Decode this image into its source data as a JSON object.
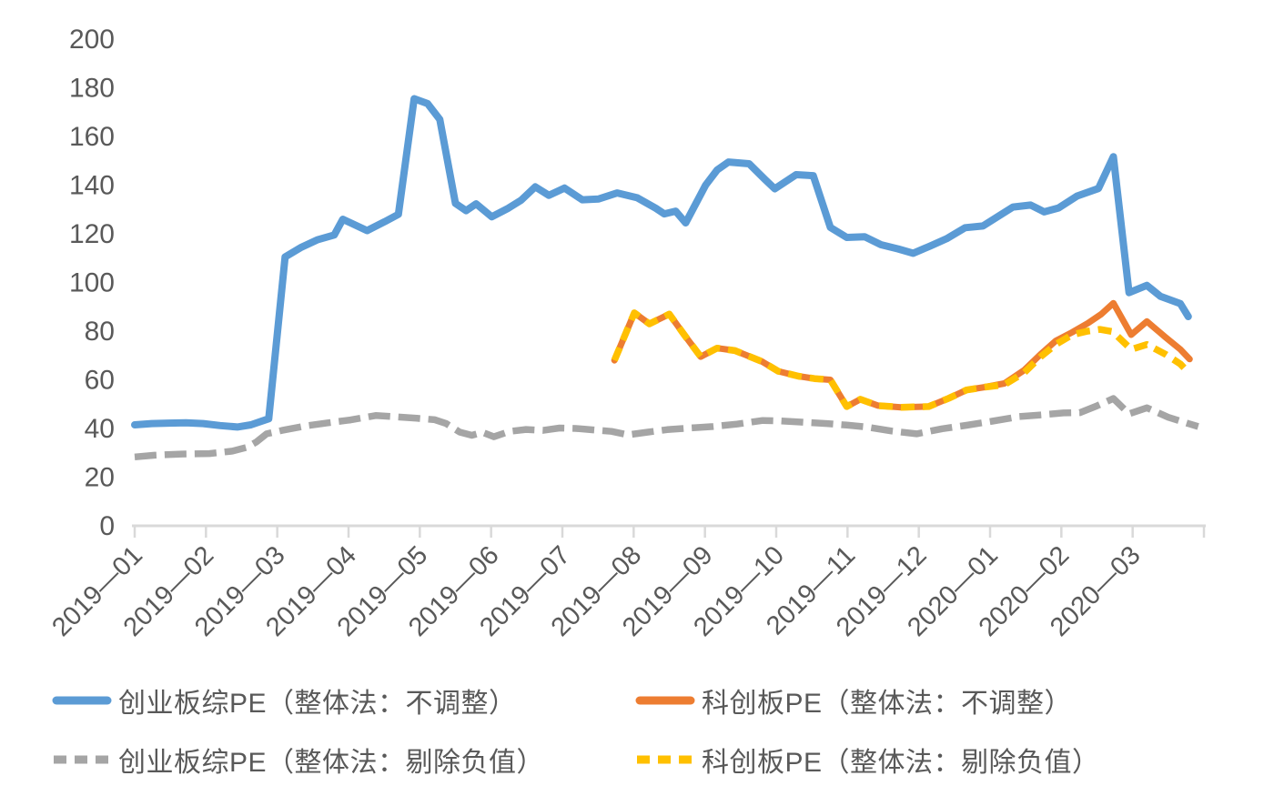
{
  "chart_data": {
    "type": "line",
    "title": "",
    "grid": false,
    "legend_position": "bottom",
    "axis_color": "#D9D9D9",
    "text_color": "#595959",
    "x_axis": {
      "unit": "months from axis left edge (2019-01 start), range 0-15",
      "range": [
        0,
        15
      ],
      "tick_labels": [
        "2019—01",
        "2019—02",
        "2019—03",
        "2019—04",
        "2019—05",
        "2019—06",
        "2019—07",
        "2019—08",
        "2019—09",
        "2019—10",
        "2019—11",
        "2019—12",
        "2020—01",
        "2020—02",
        "2020—03"
      ]
    },
    "y_axis": {
      "min": 0,
      "max": 200,
      "step": 20,
      "tick_labels": [
        "0",
        "20",
        "40",
        "60",
        "80",
        "100",
        "120",
        "140",
        "160",
        "180",
        "200"
      ]
    },
    "series": [
      {
        "id": "chinext-pe-unadjusted",
        "name": "创业板综PE（整体法：不调整）",
        "color": "#5B9BD5",
        "dashed": false,
        "points": [
          [
            0,
            41.5
          ],
          [
            0.24,
            42
          ],
          [
            0.48,
            42.2
          ],
          [
            0.72,
            42.3
          ],
          [
            0.96,
            42
          ],
          [
            1.2,
            41.2
          ],
          [
            1.44,
            40.6
          ],
          [
            1.63,
            41.5
          ],
          [
            1.88,
            44
          ],
          [
            2.11,
            110.5
          ],
          [
            2.34,
            114.5
          ],
          [
            2.56,
            117.5
          ],
          [
            2.8,
            119.5
          ],
          [
            2.92,
            126
          ],
          [
            3.26,
            121.3
          ],
          [
            3.51,
            125
          ],
          [
            3.7,
            128
          ],
          [
            3.92,
            175.5
          ],
          [
            4.11,
            173.5
          ],
          [
            4.28,
            167
          ],
          [
            4.5,
            132.5
          ],
          [
            4.65,
            129.5
          ],
          [
            4.79,
            132.3
          ],
          [
            5.01,
            127
          ],
          [
            5.24,
            130.5
          ],
          [
            5.42,
            133.8
          ],
          [
            5.62,
            139.3
          ],
          [
            5.81,
            135.8
          ],
          [
            6.03,
            138.8
          ],
          [
            6.28,
            134
          ],
          [
            6.51,
            134.3
          ],
          [
            6.77,
            136.8
          ],
          [
            7.05,
            134.8
          ],
          [
            7.31,
            130.5
          ],
          [
            7.43,
            128.2
          ],
          [
            7.59,
            129.3
          ],
          [
            7.73,
            124.5
          ],
          [
            8.01,
            140
          ],
          [
            8.17,
            146.2
          ],
          [
            8.33,
            149.5
          ],
          [
            8.62,
            148.8
          ],
          [
            8.84,
            142.4
          ],
          [
            8.98,
            138.5
          ],
          [
            9.28,
            144.3
          ],
          [
            9.52,
            143.9
          ],
          [
            9.76,
            122.6
          ],
          [
            9.99,
            118.5
          ],
          [
            10.24,
            118.8
          ],
          [
            10.47,
            115.5
          ],
          [
            10.71,
            113.8
          ],
          [
            10.92,
            112
          ],
          [
            11.16,
            115
          ],
          [
            11.39,
            118
          ],
          [
            11.65,
            122.5
          ],
          [
            11.9,
            123.2
          ],
          [
            12.12,
            127.3
          ],
          [
            12.32,
            131
          ],
          [
            12.57,
            131.8
          ],
          [
            12.76,
            129
          ],
          [
            12.96,
            130.6
          ],
          [
            13.22,
            135.5
          ],
          [
            13.52,
            138.6
          ],
          [
            13.73,
            151.7
          ],
          [
            13.95,
            95.8
          ],
          [
            14.2,
            98.8
          ],
          [
            14.39,
            94.3
          ],
          [
            14.67,
            91.3
          ],
          [
            14.78,
            86
          ]
        ]
      },
      {
        "id": "star-pe-unadjusted",
        "name": "科创板PE（整体法：不调整）",
        "color": "#ED7D31",
        "dashed": false,
        "points": [
          [
            6.73,
            68
          ],
          [
            7.01,
            87.5
          ],
          [
            7.22,
            83
          ],
          [
            7.5,
            87
          ],
          [
            7.71,
            78.5
          ],
          [
            7.94,
            69.5
          ],
          [
            8.17,
            73
          ],
          [
            8.42,
            72
          ],
          [
            8.8,
            67.5
          ],
          [
            9.03,
            63.5
          ],
          [
            9.31,
            61.5
          ],
          [
            9.54,
            60.5
          ],
          [
            9.76,
            60
          ],
          [
            9.99,
            49
          ],
          [
            10.18,
            52
          ],
          [
            10.43,
            49.4
          ],
          [
            10.75,
            48.7
          ],
          [
            11.14,
            49
          ],
          [
            11.42,
            52.4
          ],
          [
            11.67,
            55.8
          ],
          [
            11.93,
            57
          ],
          [
            12.2,
            58.5
          ],
          [
            12.48,
            64
          ],
          [
            12.71,
            70.5
          ],
          [
            12.92,
            76
          ],
          [
            13.15,
            79.5
          ],
          [
            13.37,
            83.2
          ],
          [
            13.56,
            87
          ],
          [
            13.73,
            91.5
          ],
          [
            13.98,
            78.5
          ],
          [
            14.2,
            84
          ],
          [
            14.46,
            77.5
          ],
          [
            14.67,
            72.5
          ],
          [
            14.8,
            68.5
          ]
        ]
      },
      {
        "id": "chinext-pe-ex-negative",
        "name": "创业板综PE（整体法：剔除负值）",
        "color": "#A5A5A5",
        "dashed": true,
        "points": [
          [
            0,
            28.3
          ],
          [
            0.28,
            29
          ],
          [
            0.66,
            29.5
          ],
          [
            1.05,
            29.7
          ],
          [
            1.37,
            30.7
          ],
          [
            1.58,
            32.3
          ],
          [
            1.71,
            34.5
          ],
          [
            1.85,
            37.8
          ],
          [
            2.07,
            39.2
          ],
          [
            2.39,
            41
          ],
          [
            2.71,
            42.3
          ],
          [
            3.03,
            43.5
          ],
          [
            3.38,
            45.3
          ],
          [
            3.67,
            44.8
          ],
          [
            3.96,
            44.2
          ],
          [
            4.21,
            43.6
          ],
          [
            4.37,
            42
          ],
          [
            4.56,
            38.5
          ],
          [
            4.73,
            37.2
          ],
          [
            4.88,
            38.4
          ],
          [
            5.04,
            36.6
          ],
          [
            5.26,
            38.8
          ],
          [
            5.49,
            39.6
          ],
          [
            5.73,
            39.2
          ],
          [
            5.96,
            40.2
          ],
          [
            6.19,
            40
          ],
          [
            6.44,
            39.4
          ],
          [
            6.69,
            38.8
          ],
          [
            6.92,
            37.4
          ],
          [
            7.2,
            38.5
          ],
          [
            7.47,
            39.5
          ],
          [
            7.78,
            40.2
          ],
          [
            8.11,
            40.8
          ],
          [
            8.45,
            41.8
          ],
          [
            8.81,
            43.3
          ],
          [
            9.07,
            43.1
          ],
          [
            9.41,
            42.5
          ],
          [
            9.71,
            42
          ],
          [
            9.99,
            41.4
          ],
          [
            10.27,
            40.6
          ],
          [
            10.63,
            38.9
          ],
          [
            10.97,
            37.8
          ],
          [
            11.33,
            39.9
          ],
          [
            11.67,
            41.3
          ],
          [
            12.03,
            43
          ],
          [
            12.41,
            44.9
          ],
          [
            12.76,
            45.7
          ],
          [
            13.03,
            46.4
          ],
          [
            13.26,
            46.5
          ],
          [
            13.5,
            49.3
          ],
          [
            13.73,
            52.3
          ],
          [
            13.95,
            46
          ],
          [
            14.2,
            48.5
          ],
          [
            14.5,
            44.6
          ],
          [
            14.78,
            42
          ],
          [
            14.92,
            40.8
          ]
        ]
      },
      {
        "id": "star-pe-ex-negative",
        "name": "科创板PE（整体法：剔除负值）",
        "color": "#FFC000",
        "dashed": true,
        "points": [
          [
            6.73,
            68
          ],
          [
            7.01,
            87.5
          ],
          [
            7.22,
            83
          ],
          [
            7.5,
            87
          ],
          [
            7.71,
            78.5
          ],
          [
            7.94,
            69.5
          ],
          [
            8.17,
            73
          ],
          [
            8.42,
            72
          ],
          [
            8.8,
            67.5
          ],
          [
            9.03,
            63.5
          ],
          [
            9.31,
            61.5
          ],
          [
            9.54,
            60.5
          ],
          [
            9.76,
            60
          ],
          [
            9.99,
            49
          ],
          [
            10.18,
            52
          ],
          [
            10.43,
            49.4
          ],
          [
            10.75,
            48.7
          ],
          [
            11.14,
            49
          ],
          [
            11.42,
            52.4
          ],
          [
            11.67,
            55.8
          ],
          [
            11.93,
            57
          ],
          [
            12.2,
            58
          ],
          [
            12.48,
            63
          ],
          [
            12.71,
            69.5
          ],
          [
            12.92,
            74.5
          ],
          [
            13.15,
            78.5
          ],
          [
            13.37,
            80
          ],
          [
            13.54,
            80.7
          ],
          [
            13.72,
            79.8
          ],
          [
            13.98,
            72.5
          ],
          [
            14.2,
            74.5
          ],
          [
            14.46,
            70.5
          ],
          [
            14.67,
            66.5
          ],
          [
            14.8,
            62.5
          ]
        ]
      }
    ]
  }
}
